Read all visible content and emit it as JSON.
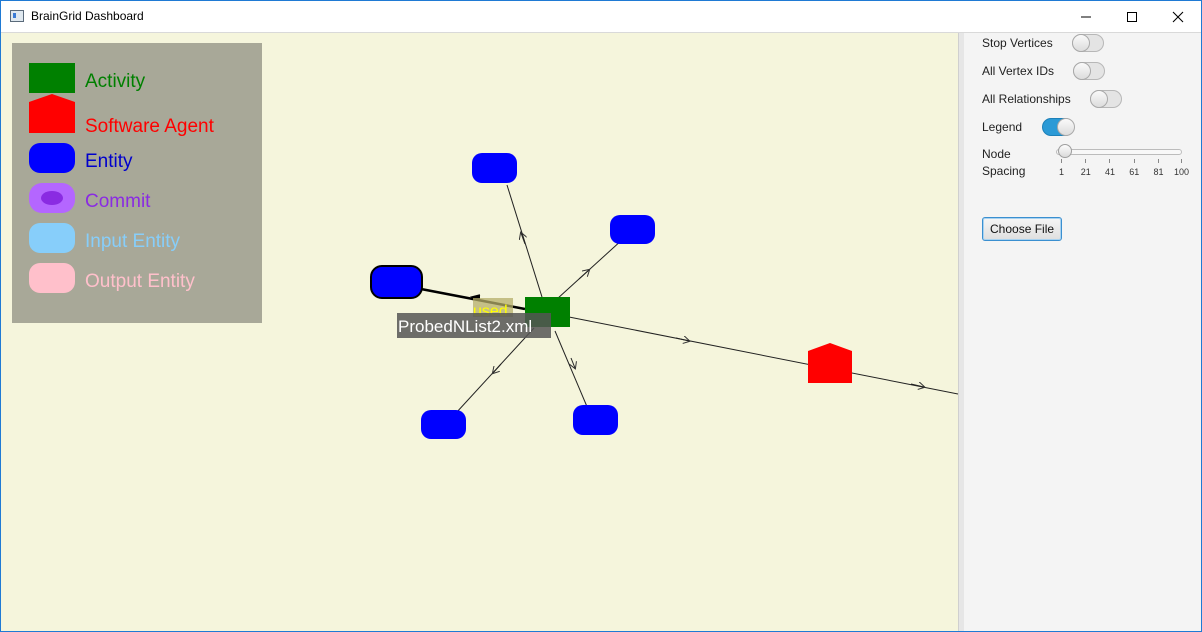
{
  "window": {
    "title": "BrainGrid Dashboard"
  },
  "legend": {
    "items": [
      {
        "label": "Activity",
        "color": "#008000",
        "shape": "rect"
      },
      {
        "label": "Software Agent",
        "color": "#ff0000",
        "shape": "house"
      },
      {
        "label": "Entity",
        "color": "#0000ff",
        "shape": "rounded"
      },
      {
        "label": "Commit",
        "color": "#b466ff",
        "shape": "ring"
      },
      {
        "label": "Input Entity",
        "color": "#87cefa",
        "shape": "rounded"
      },
      {
        "label": "Output Entity",
        "color": "#ffc0cb",
        "shape": "rounded"
      }
    ]
  },
  "graph": {
    "edge_label": "used",
    "tooltip": "ProbedNList2.xml",
    "colors": {
      "activity": "#008000",
      "agent": "#ff0000",
      "entity": "#0000ff",
      "edge_label": "#ffff00",
      "background": "#f5f5dc"
    }
  },
  "panel": {
    "stop_vertices": {
      "label": "Stop Vertices",
      "on": false
    },
    "all_vertex_ids": {
      "label": "All Vertex IDs",
      "on": false
    },
    "all_relationships": {
      "label": "All Relationships",
      "on": false
    },
    "legend_toggle": {
      "label": "Legend",
      "on": true
    },
    "node_spacing": {
      "label_line1": "Node",
      "label_line2": "Spacing",
      "value": 1,
      "min": 1,
      "max": 100,
      "ticks": [
        "1",
        "21",
        "41",
        "61",
        "81",
        "100"
      ]
    },
    "choose_file": "Choose File"
  }
}
